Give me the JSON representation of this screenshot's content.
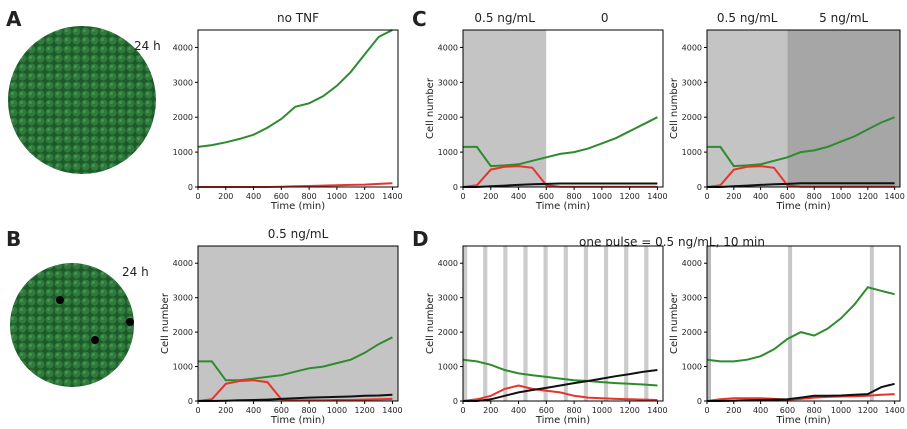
{
  "figure": {
    "panel_letters": [
      "A",
      "B",
      "C",
      "D"
    ],
    "sphere_labels": [
      "24 h",
      "24 h"
    ],
    "group_title": "one pulse = 0.5 ng/mL, 10 min"
  },
  "chart_data": [
    {
      "type": "line",
      "title": "no TNF",
      "xlabel": "Time (min)",
      "x": [
        0,
        100,
        200,
        300,
        400,
        500,
        600,
        700,
        800,
        900,
        1000,
        1100,
        1200,
        1300,
        1400
      ],
      "xlim": [
        0,
        1440
      ],
      "xticks": [
        0,
        200,
        400,
        600,
        800,
        1000,
        1200,
        1400
      ],
      "ylim": [
        0,
        4500
      ],
      "yticks": [
        0,
        1000,
        2000,
        3000,
        4000
      ],
      "regions": [],
      "series": [
        {
          "color": "#2e8b2e",
          "values": [
            1150,
            1200,
            1280,
            1380,
            1500,
            1700,
            1950,
            2300,
            2400,
            2600,
            2900,
            3300,
            3800,
            4300,
            4500
          ]
        },
        {
          "color": "#e8332a",
          "values": [
            0,
            0,
            0,
            0,
            0,
            0,
            10,
            20,
            30,
            40,
            50,
            60,
            70,
            90,
            110
          ]
        }
      ]
    },
    {
      "type": "line",
      "title": "0.5 ng/mL",
      "xlabel": "Time (min)",
      "ylabel": "Cell number",
      "x": [
        0,
        100,
        200,
        300,
        400,
        500,
        600,
        700,
        800,
        900,
        1000,
        1100,
        1200,
        1300,
        1400
      ],
      "xlim": [
        0,
        1440
      ],
      "xticks": [
        0,
        200,
        400,
        600,
        800,
        1000,
        1200,
        1400
      ],
      "ylim": [
        0,
        4500
      ],
      "yticks": [
        0,
        1000,
        2000,
        3000,
        4000
      ],
      "regions": [
        {
          "start": 0,
          "end": 1440,
          "color": "#c4c4c4"
        }
      ],
      "series": [
        {
          "color": "#2e8b2e",
          "values": [
            1150,
            1150,
            600,
            600,
            650,
            700,
            750,
            850,
            950,
            1000,
            1100,
            1200,
            1400,
            1650,
            1850
          ]
        },
        {
          "color": "#e8332a",
          "values": [
            0,
            50,
            500,
            580,
            600,
            550,
            50,
            20,
            20,
            20,
            30,
            30,
            40,
            50,
            60
          ]
        },
        {
          "color": "#111111",
          "values": [
            0,
            0,
            10,
            20,
            30,
            40,
            60,
            80,
            100,
            110,
            120,
            130,
            150,
            160,
            180
          ]
        }
      ]
    },
    {
      "type": "line",
      "xlabel": "Time (min)",
      "ylabel": "Cell number",
      "x": [
        0,
        100,
        200,
        300,
        400,
        500,
        600,
        700,
        800,
        900,
        1000,
        1100,
        1200,
        1300,
        1400
      ],
      "xlim": [
        0,
        1440
      ],
      "xticks": [
        0,
        200,
        400,
        600,
        800,
        1000,
        1200,
        1400
      ],
      "ylim": [
        0,
        4500
      ],
      "yticks": [
        0,
        1000,
        2000,
        3000,
        4000
      ],
      "regions": [
        {
          "start": 0,
          "end": 600,
          "color": "#c4c4c4",
          "label": "0.5 ng/mL"
        },
        {
          "start": 600,
          "end": 1440,
          "color": "#ffffff",
          "label": "0"
        }
      ],
      "series": [
        {
          "color": "#2e8b2e",
          "values": [
            1150,
            1150,
            600,
            620,
            650,
            750,
            850,
            950,
            1000,
            1100,
            1250,
            1400,
            1600,
            1800,
            2000
          ]
        },
        {
          "color": "#e8332a",
          "values": [
            0,
            50,
            500,
            580,
            600,
            550,
            50,
            10,
            5,
            5,
            5,
            5,
            5,
            5,
            5
          ]
        },
        {
          "color": "#111111",
          "values": [
            0,
            0,
            20,
            40,
            60,
            80,
            90,
            100,
            100,
            100,
            100,
            100,
            100,
            100,
            100
          ]
        }
      ]
    },
    {
      "type": "line",
      "xlabel": "Time (min)",
      "ylabel": "Cell number",
      "x": [
        0,
        100,
        200,
        300,
        400,
        500,
        600,
        700,
        800,
        900,
        1000,
        1100,
        1200,
        1300,
        1400
      ],
      "xlim": [
        0,
        1440
      ],
      "xticks": [
        0,
        200,
        400,
        600,
        800,
        1000,
        1200,
        1400
      ],
      "ylim": [
        0,
        4500
      ],
      "yticks": [
        0,
        1000,
        2000,
        3000,
        4000
      ],
      "regions": [
        {
          "start": 0,
          "end": 600,
          "color": "#c4c4c4",
          "label": "0.5 ng/mL"
        },
        {
          "start": 600,
          "end": 1440,
          "color": "#a6a6a6",
          "label": "5 ng/mL"
        }
      ],
      "series": [
        {
          "color": "#2e8b2e",
          "values": [
            1150,
            1150,
            600,
            620,
            650,
            750,
            850,
            1000,
            1050,
            1150,
            1300,
            1450,
            1650,
            1850,
            2000
          ]
        },
        {
          "color": "#e8332a",
          "values": [
            0,
            50,
            500,
            580,
            600,
            550,
            50,
            10,
            5,
            5,
            5,
            5,
            5,
            5,
            5
          ]
        },
        {
          "color": "#111111",
          "values": [
            0,
            0,
            20,
            40,
            60,
            80,
            90,
            110,
            110,
            110,
            110,
            110,
            110,
            110,
            110
          ]
        }
      ]
    },
    {
      "type": "line",
      "xlabel": "Time (min)",
      "ylabel": "Cell number",
      "x": [
        0,
        100,
        200,
        300,
        400,
        500,
        600,
        700,
        800,
        900,
        1000,
        1100,
        1200,
        1300,
        1400
      ],
      "xlim": [
        0,
        1440
      ],
      "xticks": [
        0,
        200,
        400,
        600,
        800,
        1000,
        1200,
        1400
      ],
      "ylim": [
        0,
        4500
      ],
      "yticks": [
        0,
        1000,
        2000,
        3000,
        4000
      ],
      "regions": [
        {
          "start": 0,
          "end": 30,
          "color": "#cccccc"
        },
        {
          "start": 145,
          "end": 175,
          "color": "#cccccc"
        },
        {
          "start": 290,
          "end": 320,
          "color": "#cccccc"
        },
        {
          "start": 435,
          "end": 465,
          "color": "#cccccc"
        },
        {
          "start": 580,
          "end": 610,
          "color": "#cccccc"
        },
        {
          "start": 725,
          "end": 755,
          "color": "#cccccc"
        },
        {
          "start": 870,
          "end": 900,
          "color": "#cccccc"
        },
        {
          "start": 1015,
          "end": 1045,
          "color": "#cccccc"
        },
        {
          "start": 1160,
          "end": 1190,
          "color": "#cccccc"
        },
        {
          "start": 1305,
          "end": 1335,
          "color": "#cccccc"
        }
      ],
      "series": [
        {
          "color": "#2e8b2e",
          "values": [
            1200,
            1150,
            1050,
            900,
            800,
            750,
            700,
            650,
            600,
            580,
            550,
            520,
            500,
            480,
            450
          ]
        },
        {
          "color": "#e8332a",
          "values": [
            0,
            50,
            150,
            350,
            450,
            350,
            300,
            250,
            150,
            100,
            80,
            60,
            50,
            40,
            30
          ]
        },
        {
          "color": "#111111",
          "values": [
            0,
            0,
            50,
            150,
            250,
            320,
            380,
            450,
            520,
            580,
            650,
            720,
            780,
            850,
            900
          ]
        }
      ]
    },
    {
      "type": "line",
      "xlabel": "Time (min)",
      "ylabel": "Cell number",
      "x": [
        0,
        100,
        200,
        300,
        400,
        500,
        600,
        700,
        800,
        900,
        1000,
        1100,
        1200,
        1300,
        1400
      ],
      "xlim": [
        0,
        1440
      ],
      "xticks": [
        0,
        200,
        400,
        600,
        800,
        1000,
        1200,
        1400
      ],
      "ylim": [
        0,
        4500
      ],
      "yticks": [
        0,
        1000,
        2000,
        3000,
        4000
      ],
      "regions": [
        {
          "start": 0,
          "end": 30,
          "color": "#b8b8b8"
        },
        {
          "start": 605,
          "end": 635,
          "color": "#c8c8c8"
        },
        {
          "start": 1215,
          "end": 1245,
          "color": "#c8c8c8"
        }
      ],
      "series": [
        {
          "color": "#2e8b2e",
          "values": [
            1200,
            1150,
            1150,
            1200,
            1300,
            1500,
            1800,
            2000,
            1900,
            2100,
            2400,
            2800,
            3300,
            3200,
            3100
          ]
        },
        {
          "color": "#e8332a",
          "values": [
            0,
            50,
            80,
            80,
            80,
            60,
            40,
            60,
            100,
            120,
            130,
            140,
            150,
            180,
            200
          ]
        },
        {
          "color": "#111111",
          "values": [
            0,
            0,
            10,
            20,
            30,
            40,
            50,
            100,
            150,
            150,
            160,
            180,
            200,
            400,
            500
          ]
        }
      ]
    }
  ]
}
